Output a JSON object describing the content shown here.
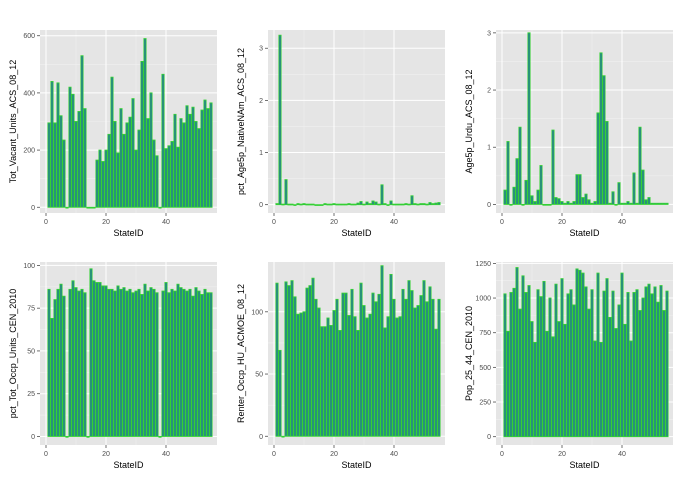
{
  "chart_data": [
    {
      "type": "bar",
      "xlabel": "StateID",
      "ylabel": "Tot_Vacant_Units_ACS_08_12",
      "xlim": [
        -2,
        57
      ],
      "ylim": [
        -20,
        620
      ],
      "xticks": [
        0,
        20,
        40
      ],
      "yticks": [
        0,
        200,
        400,
        600
      ],
      "x": [
        1,
        2,
        3,
        4,
        5,
        6,
        7,
        8,
        9,
        10,
        11,
        12,
        13,
        14,
        15,
        16,
        17,
        18,
        19,
        20,
        21,
        22,
        23,
        24,
        25,
        26,
        27,
        28,
        29,
        30,
        31,
        32,
        33,
        34,
        35,
        36,
        37,
        38,
        39,
        40,
        41,
        42,
        43,
        44,
        45,
        46,
        47,
        48,
        49,
        50,
        51,
        52,
        53,
        54,
        55
      ],
      "values": [
        295,
        440,
        295,
        435,
        320,
        235,
        0,
        420,
        395,
        300,
        335,
        530,
        345,
        0,
        0,
        0,
        165,
        200,
        160,
        200,
        255,
        455,
        300,
        190,
        345,
        255,
        295,
        315,
        380,
        200,
        270,
        510,
        590,
        310,
        400,
        235,
        180,
        0,
        465,
        205,
        215,
        230,
        325,
        210,
        310,
        295,
        355,
        325,
        350,
        300,
        275,
        340,
        375,
        345,
        365
      ]
    },
    {
      "type": "bar",
      "xlabel": "StateID",
      "ylabel": "pct_Age5p_NativeNAm_ACS_08_12",
      "xlim": [
        -2,
        57
      ],
      "ylim": [
        -0.16,
        3.35
      ],
      "xticks": [
        0,
        20,
        40
      ],
      "yticks": [
        0,
        1,
        2,
        3
      ],
      "x": [
        1,
        2,
        3,
        4,
        5,
        6,
        7,
        8,
        9,
        10,
        11,
        12,
        13,
        14,
        15,
        16,
        17,
        18,
        19,
        20,
        21,
        22,
        23,
        24,
        25,
        26,
        27,
        28,
        29,
        30,
        31,
        32,
        33,
        34,
        35,
        36,
        37,
        38,
        39,
        40,
        41,
        42,
        43,
        44,
        45,
        46,
        47,
        48,
        49,
        50,
        51,
        52,
        53,
        54,
        55
      ],
      "values": [
        0.02,
        3.25,
        0.01,
        0.48,
        0.01,
        0.01,
        0,
        0.02,
        0.01,
        0.02,
        0.01,
        0.01,
        0.01,
        0,
        0,
        0,
        0.02,
        0.01,
        0.01,
        0.02,
        0.01,
        0.01,
        0.01,
        0.01,
        0.02,
        0.01,
        0.01,
        0.03,
        0.06,
        0.01,
        0.05,
        0.02,
        0.07,
        0.05,
        0.01,
        0.38,
        0.02,
        0,
        0.07,
        0.01,
        0.01,
        0.01,
        0.01,
        0.02,
        0.01,
        0.17,
        0.02,
        0.01,
        0.02,
        0.02,
        0.01,
        0.04,
        0.02,
        0.03,
        0.04
      ]
    },
    {
      "type": "bar",
      "xlabel": "StateID",
      "ylabel": "Age5p_Urdu_ACS_08_12",
      "xlim": [
        -2,
        57
      ],
      "ylim": [
        -0.15,
        3.05
      ],
      "xticks": [
        0,
        20,
        40
      ],
      "yticks": [
        0,
        1,
        2,
        3
      ],
      "x": [
        1,
        2,
        3,
        4,
        5,
        6,
        7,
        8,
        9,
        10,
        11,
        12,
        13,
        14,
        15,
        16,
        17,
        18,
        19,
        20,
        21,
        22,
        23,
        24,
        25,
        26,
        27,
        28,
        29,
        30,
        31,
        32,
        33,
        34,
        35,
        36,
        37,
        38,
        39,
        40,
        41,
        42,
        43,
        44,
        45,
        46,
        47,
        48,
        49,
        50,
        51,
        52,
        53,
        54,
        55
      ],
      "values": [
        0.25,
        1.1,
        0,
        0.3,
        0.8,
        1.35,
        0,
        0.42,
        3.0,
        0.15,
        0.05,
        0.25,
        0.68,
        0,
        0,
        0,
        1.3,
        0.12,
        0.1,
        0.05,
        0.02,
        0.05,
        0.02,
        0.05,
        0.52,
        0.52,
        0.12,
        0.18,
        0.08,
        0.02,
        0.05,
        1.6,
        2.65,
        2.25,
        1.45,
        0.02,
        0.22,
        0,
        0.38,
        0.02,
        0.02,
        0.05,
        0.02,
        0.55,
        0.02,
        1.35,
        0.6,
        0.08,
        0.12,
        0.02,
        0.02,
        0.02,
        0.02,
        0.02,
        0.02
      ]
    },
    {
      "type": "bar",
      "xlabel": "StateID",
      "ylabel": "pct_Tot_Occp_Units_CEN_2010",
      "xlim": [
        -2,
        57
      ],
      "ylim": [
        -5,
        102
      ],
      "xticks": [
        0,
        20,
        40
      ],
      "yticks": [
        0,
        25,
        50,
        75,
        100
      ],
      "x": [
        1,
        2,
        3,
        4,
        5,
        6,
        7,
        8,
        9,
        10,
        11,
        12,
        13,
        14,
        15,
        16,
        17,
        18,
        19,
        20,
        21,
        22,
        23,
        24,
        25,
        26,
        27,
        28,
        29,
        30,
        31,
        32,
        33,
        34,
        35,
        36,
        37,
        38,
        39,
        40,
        41,
        42,
        43,
        44,
        45,
        46,
        47,
        48,
        49,
        50,
        51,
        52,
        53,
        54,
        55
      ],
      "values": [
        86,
        69,
        80,
        86,
        89,
        82,
        0,
        86,
        91,
        87,
        85,
        86,
        84,
        0,
        98,
        91,
        90,
        90,
        88,
        88,
        86,
        86,
        85,
        88,
        86,
        87,
        85,
        86,
        84,
        85,
        86,
        83,
        89,
        85,
        87,
        86,
        84,
        0,
        85,
        90,
        84,
        86,
        85,
        89,
        87,
        86,
        85,
        86,
        82,
        87,
        85,
        83,
        86,
        84,
        84
      ]
    },
    {
      "type": "bar",
      "xlabel": "StateID",
      "ylabel": "Renter_Occp_HU_ACMOE_08_12",
      "xlim": [
        -2,
        57
      ],
      "ylim": [
        -7,
        140
      ],
      "xticks": [
        0,
        20,
        40
      ],
      "yticks": [
        0,
        50,
        100
      ],
      "x": [
        1,
        2,
        3,
        4,
        5,
        6,
        7,
        8,
        9,
        10,
        11,
        12,
        13,
        14,
        15,
        16,
        17,
        18,
        19,
        20,
        21,
        22,
        23,
        24,
        25,
        26,
        27,
        28,
        29,
        30,
        31,
        32,
        33,
        34,
        35,
        36,
        37,
        38,
        39,
        40,
        41,
        42,
        43,
        44,
        45,
        46,
        47,
        48,
        49,
        50,
        51,
        52,
        53,
        54,
        55
      ],
      "values": [
        123,
        69,
        0,
        124,
        121,
        125,
        112,
        98,
        99,
        100,
        119,
        121,
        127,
        110,
        103,
        88,
        88,
        95,
        89,
        101,
        110,
        85,
        115,
        115,
        97,
        118,
        96,
        85,
        123,
        105,
        95,
        98,
        115,
        108,
        114,
        137,
        87,
        96,
        130,
        110,
        95,
        96,
        118,
        110,
        125,
        117,
        103,
        105,
        113,
        125,
        108,
        120,
        110,
        86,
        110
      ]
    },
    {
      "type": "bar",
      "xlabel": "StateID",
      "ylabel": "Pop_25_44_CEN_2010",
      "xlim": [
        -2,
        57
      ],
      "ylim": [
        -60,
        1260
      ],
      "xticks": [
        0,
        20,
        40
      ],
      "yticks": [
        0,
        250,
        500,
        750,
        1000,
        1250
      ],
      "x": [
        1,
        2,
        3,
        4,
        5,
        6,
        7,
        8,
        9,
        10,
        11,
        12,
        13,
        14,
        15,
        16,
        17,
        18,
        19,
        20,
        21,
        22,
        23,
        24,
        25,
        26,
        27,
        28,
        29,
        30,
        31,
        32,
        33,
        34,
        35,
        36,
        37,
        38,
        39,
        40,
        41,
        42,
        43,
        44,
        45,
        46,
        47,
        48,
        49,
        50,
        51,
        52,
        53,
        54,
        55
      ],
      "values": [
        1030,
        760,
        1040,
        1070,
        1220,
        920,
        1160,
        1040,
        1090,
        830,
        680,
        1060,
        1010,
        1120,
        760,
        1000,
        720,
        1100,
        830,
        1140,
        810,
        1030,
        1060,
        950,
        1210,
        1200,
        1180,
        1080,
        920,
        1060,
        690,
        1180,
        680,
        1050,
        1140,
        860,
        1050,
        780,
        950,
        1180,
        810,
        1040,
        690,
        1040,
        1060,
        910,
        1000,
        1080,
        1100,
        1030,
        1080,
        970,
        1090,
        910,
        1050
      ]
    }
  ]
}
